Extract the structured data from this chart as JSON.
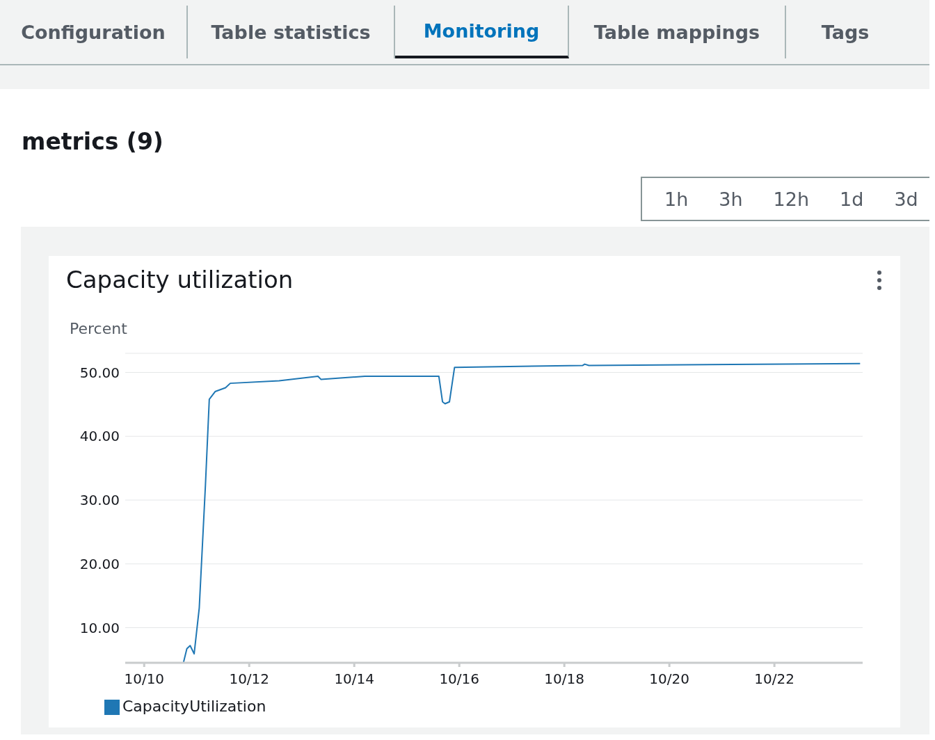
{
  "chart_data": {
    "type": "line",
    "title": "Capacity utilization",
    "subtitle": "metrics (9)",
    "ylabel": "Percent",
    "annotations": [
      "Configuration",
      "Table statistics",
      "Monitoring",
      "Table mappings",
      "Tags",
      "1h",
      "3h",
      "12h",
      "1d",
      "3d"
    ],
    "x": [
      "--10-10T18:00",
      "--10-10T19:30",
      "--10-10T21:00",
      "--10-10T22:50",
      "--10-11T01:10",
      "--10-11T04:00",
      "--10-11T05:45",
      "--10-11T08:25",
      "--10-11T13:10",
      "--10-11T15:20",
      "--10-12T13:40",
      "--10-13T07:25",
      "--10-13T08:50",
      "--10-14T04:50",
      "--10-15T14:40",
      "--10-15T16:20",
      "--10-15T17:30",
      "--10-15T19:30",
      "--10-15T21:50",
      "--10-18T08:25",
      "--10-18T09:20",
      "--10-18T11:15",
      "--10-23T15:10"
    ],
    "series": [
      {
        "name": "CapacityUtilization",
        "color": "#1f77b4",
        "values": [
          4.6,
          6.7,
          7.2,
          5.9,
          13.1,
          32.4,
          45.8,
          47.0,
          47.6,
          48.3,
          48.7,
          49.4,
          48.9,
          49.4,
          49.4,
          45.4,
          45.1,
          45.4,
          50.8,
          51.1,
          51.3,
          51.1,
          51.4
        ]
      }
    ],
    "xlim": [
      "--10-09T15:20",
      "--10-23T16:20"
    ],
    "xticks": [
      {
        "value": "--10-10",
        "label": "10/10"
      },
      {
        "value": "--10-12",
        "label": "10/12"
      },
      {
        "value": "--10-14",
        "label": "10/14"
      },
      {
        "value": "--10-16",
        "label": "10/16"
      },
      {
        "value": "--10-18",
        "label": "10/18"
      },
      {
        "value": "--10-20",
        "label": "10/20"
      },
      {
        "value": "--10-22",
        "label": "10/22"
      }
    ],
    "ylim": [
      4.5,
      53
    ],
    "yticks": [
      {
        "value": 10,
        "label": "10.00"
      },
      {
        "value": 20,
        "label": "20.00"
      },
      {
        "value": 30,
        "label": "30.00"
      },
      {
        "value": 40,
        "label": "40.00"
      },
      {
        "value": 50,
        "label": "50.00"
      }
    ],
    "grid": "y",
    "legend": "bottom left",
    "marker": "none",
    "line_style": "solid"
  }
}
